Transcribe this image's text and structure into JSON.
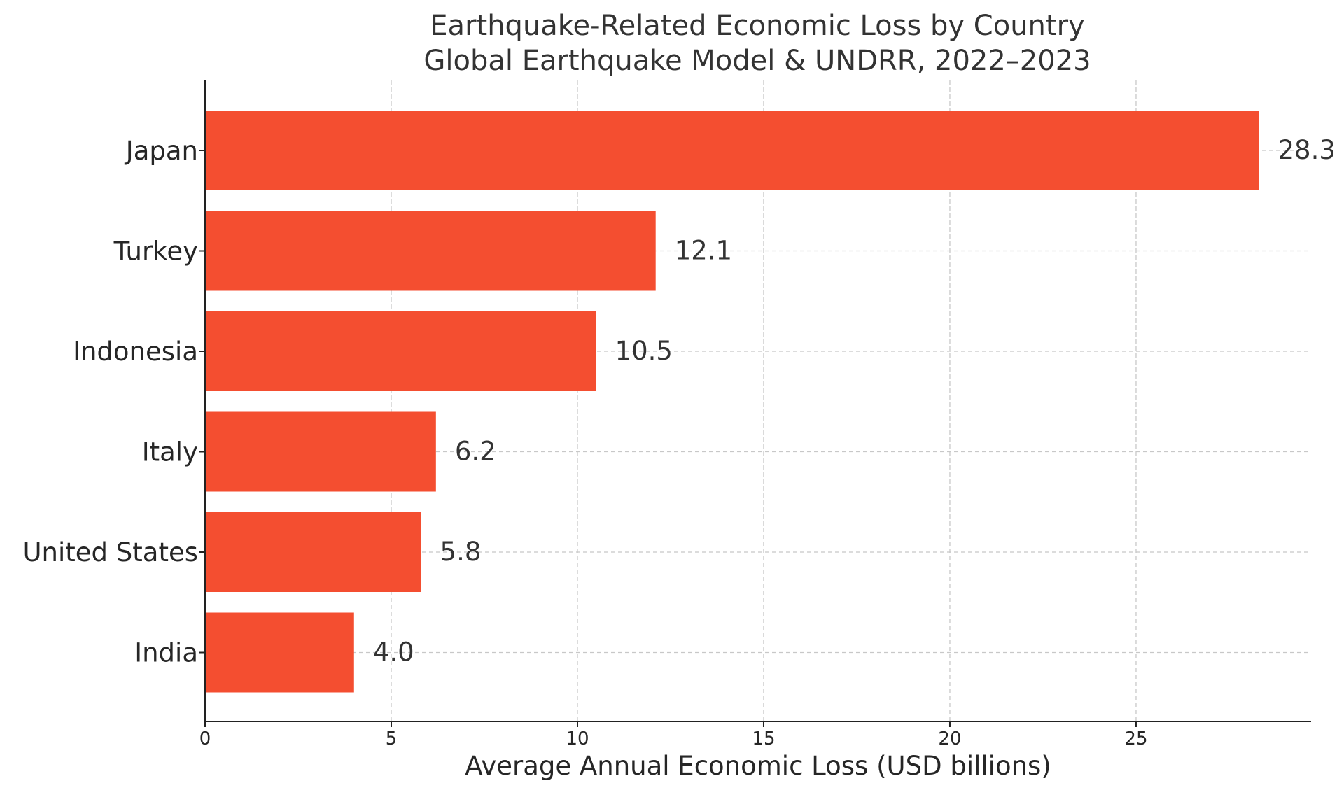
{
  "chart_data": {
    "type": "bar",
    "orientation": "horizontal",
    "title": "Earthquake-Related Economic Loss by Country",
    "subtitle": "Global Earthquake Model & UNDRR, 2022–2023",
    "xlabel": "Average Annual Economic Loss (USD billions)",
    "ylabel": "",
    "categories": [
      "Japan",
      "Turkey",
      "Indonesia",
      "Italy",
      "United States",
      "India"
    ],
    "values": [
      28.3,
      12.1,
      10.5,
      6.2,
      5.8,
      4.0
    ],
    "value_labels": [
      "28.3",
      "12.1",
      "10.5",
      "6.2",
      "5.8",
      "4.0"
    ],
    "x_ticks": [
      0,
      5,
      10,
      15,
      20,
      25
    ],
    "x_tick_labels": [
      "0",
      "5",
      "10",
      "15",
      "20",
      "25"
    ],
    "xlim": [
      0,
      29.7
    ],
    "grid": true,
    "legend": "none",
    "bar_color": "#f44e30"
  }
}
